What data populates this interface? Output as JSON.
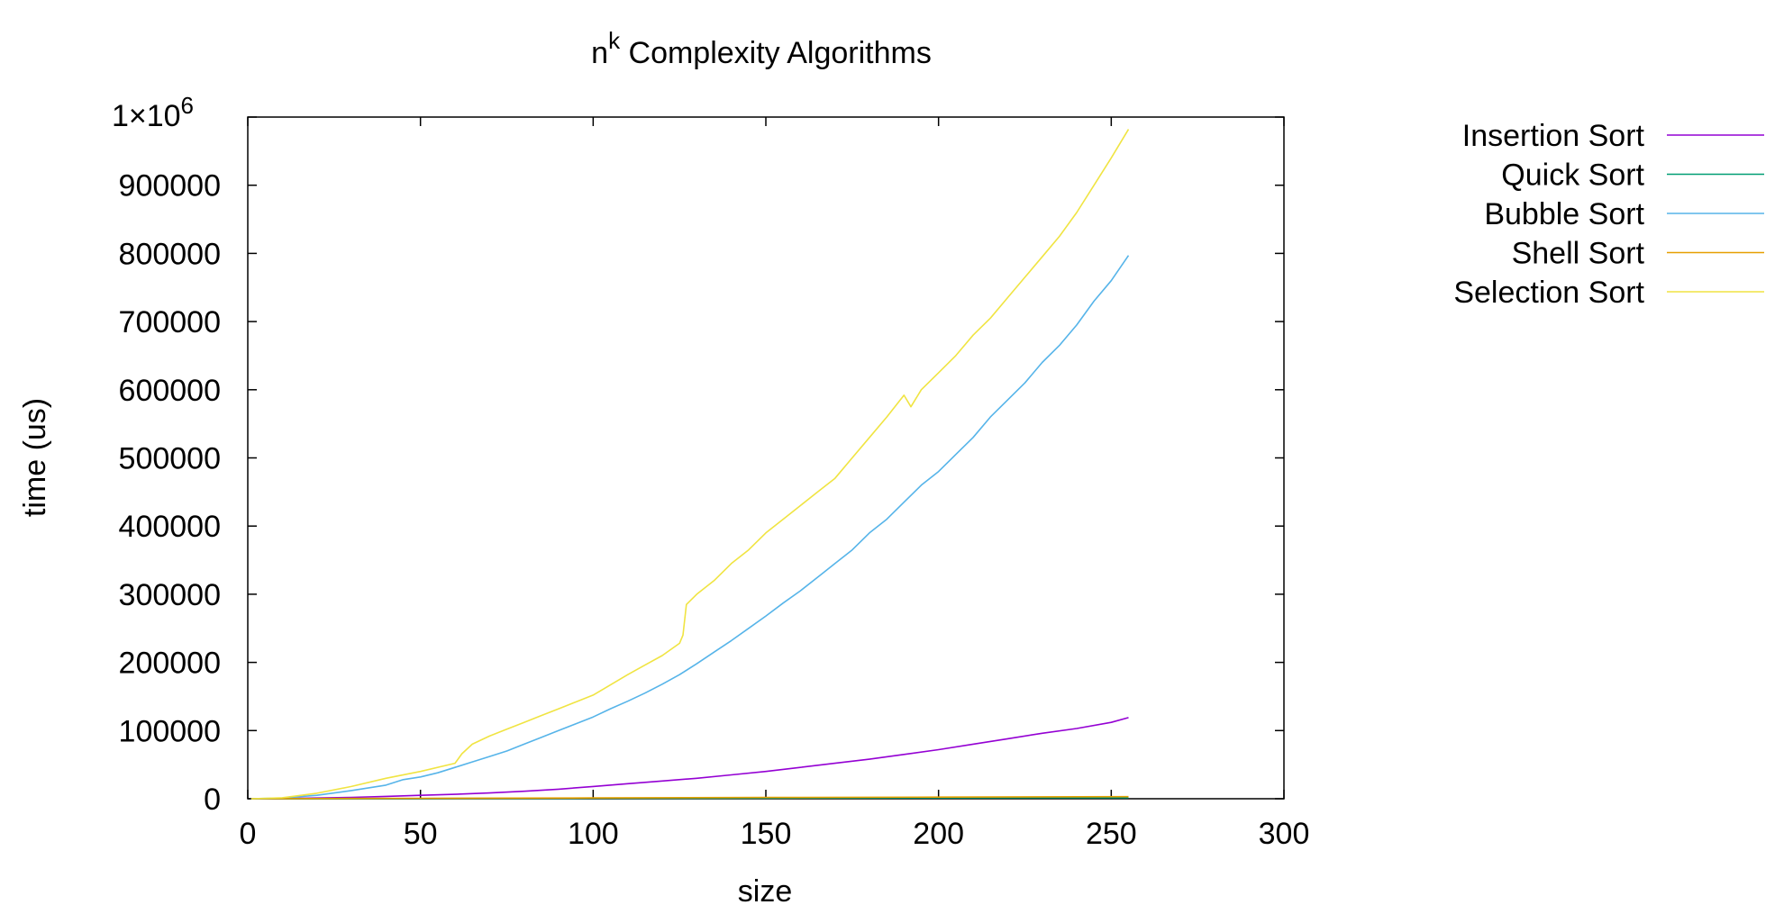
{
  "chart_data": {
    "type": "line",
    "title": {
      "base": "n",
      "superscript": "k",
      "rest": " Complexity Algorithms"
    },
    "xlabel": "size",
    "ylabel": "time (us)",
    "xlim": [
      0,
      300
    ],
    "ylim": [
      0,
      1000000
    ],
    "xticks": [
      0,
      50,
      100,
      150,
      200,
      250,
      300
    ],
    "xtick_labels": [
      "0",
      "50",
      "100",
      "150",
      "200",
      "250",
      "300"
    ],
    "yticks": [
      0,
      100000,
      200000,
      300000,
      400000,
      500000,
      600000,
      700000,
      800000,
      900000,
      1000000
    ],
    "ytick_labels": [
      "0",
      "100000",
      "200000",
      "300000",
      "400000",
      "500000",
      "600000",
      "700000",
      "800000",
      "900000",
      ""
    ],
    "ytop_label": {
      "mantissa": "1×10",
      "exponent": "6"
    },
    "legend_position": "outside-right-top",
    "grid": false,
    "series": [
      {
        "name": "Insertion Sort",
        "color": "#9400d3",
        "x": [
          1,
          10,
          20,
          30,
          40,
          50,
          60,
          70,
          80,
          90,
          100,
          110,
          120,
          130,
          140,
          150,
          160,
          170,
          180,
          190,
          200,
          210,
          220,
          230,
          240,
          250,
          255
        ],
        "y": [
          0,
          200,
          1000,
          2000,
          3500,
          5000,
          6500,
          8500,
          11000,
          14000,
          18000,
          22000,
          26000,
          30000,
          35000,
          40000,
          46000,
          52000,
          58000,
          65000,
          72000,
          80000,
          88000,
          96000,
          103000,
          112000,
          119000
        ]
      },
      {
        "name": "Quick Sort",
        "color": "#009e73",
        "x": [
          1,
          50,
          100,
          150,
          200,
          255
        ],
        "y": [
          0,
          300,
          600,
          900,
          1200,
          1500
        ]
      },
      {
        "name": "Bubble Sort",
        "color": "#56b4e9",
        "x": [
          1,
          10,
          20,
          30,
          40,
          45,
          50,
          55,
          60,
          65,
          70,
          75,
          80,
          85,
          90,
          95,
          100,
          105,
          110,
          115,
          120,
          125,
          130,
          135,
          140,
          145,
          150,
          155,
          160,
          165,
          170,
          175,
          180,
          185,
          190,
          195,
          200,
          205,
          210,
          215,
          220,
          225,
          230,
          235,
          240,
          245,
          250,
          255
        ],
        "y": [
          0,
          1000,
          5000,
          12000,
          20000,
          28000,
          32000,
          38000,
          46000,
          54000,
          62000,
          70000,
          80000,
          90000,
          100000,
          110000,
          120000,
          132000,
          143000,
          155000,
          168000,
          182000,
          198000,
          215000,
          232000,
          250000,
          268000,
          287000,
          305000,
          325000,
          345000,
          365000,
          390000,
          410000,
          435000,
          460000,
          480000,
          505000,
          530000,
          560000,
          585000,
          610000,
          640000,
          665000,
          695000,
          730000,
          760000,
          797000
        ]
      },
      {
        "name": "Shell Sort",
        "color": "#e69f00",
        "x": [
          1,
          50,
          100,
          150,
          200,
          255
        ],
        "y": [
          0,
          600,
          1200,
          1800,
          2400,
          3000
        ]
      },
      {
        "name": "Selection Sort",
        "color": "#f0e442",
        "x": [
          1,
          10,
          20,
          30,
          40,
          50,
          60,
          62,
          65,
          70,
          75,
          80,
          85,
          90,
          95,
          100,
          105,
          110,
          115,
          120,
          125,
          126,
          127,
          130,
          135,
          140,
          145,
          150,
          155,
          160,
          165,
          170,
          175,
          180,
          185,
          190,
          192,
          195,
          200,
          205,
          210,
          215,
          220,
          225,
          230,
          235,
          240,
          245,
          250,
          255
        ],
        "y": [
          0,
          1500,
          8000,
          18000,
          30000,
          40000,
          52000,
          66000,
          80000,
          92000,
          102000,
          112000,
          122000,
          132000,
          142000,
          152000,
          167000,
          182000,
          196000,
          210000,
          228000,
          240000,
          285000,
          300000,
          320000,
          345000,
          365000,
          390000,
          410000,
          430000,
          450000,
          470000,
          500000,
          530000,
          560000,
          592000,
          575000,
          600000,
          625000,
          650000,
          680000,
          705000,
          735000,
          765000,
          795000,
          825000,
          860000,
          900000,
          940000,
          982000
        ]
      }
    ]
  }
}
